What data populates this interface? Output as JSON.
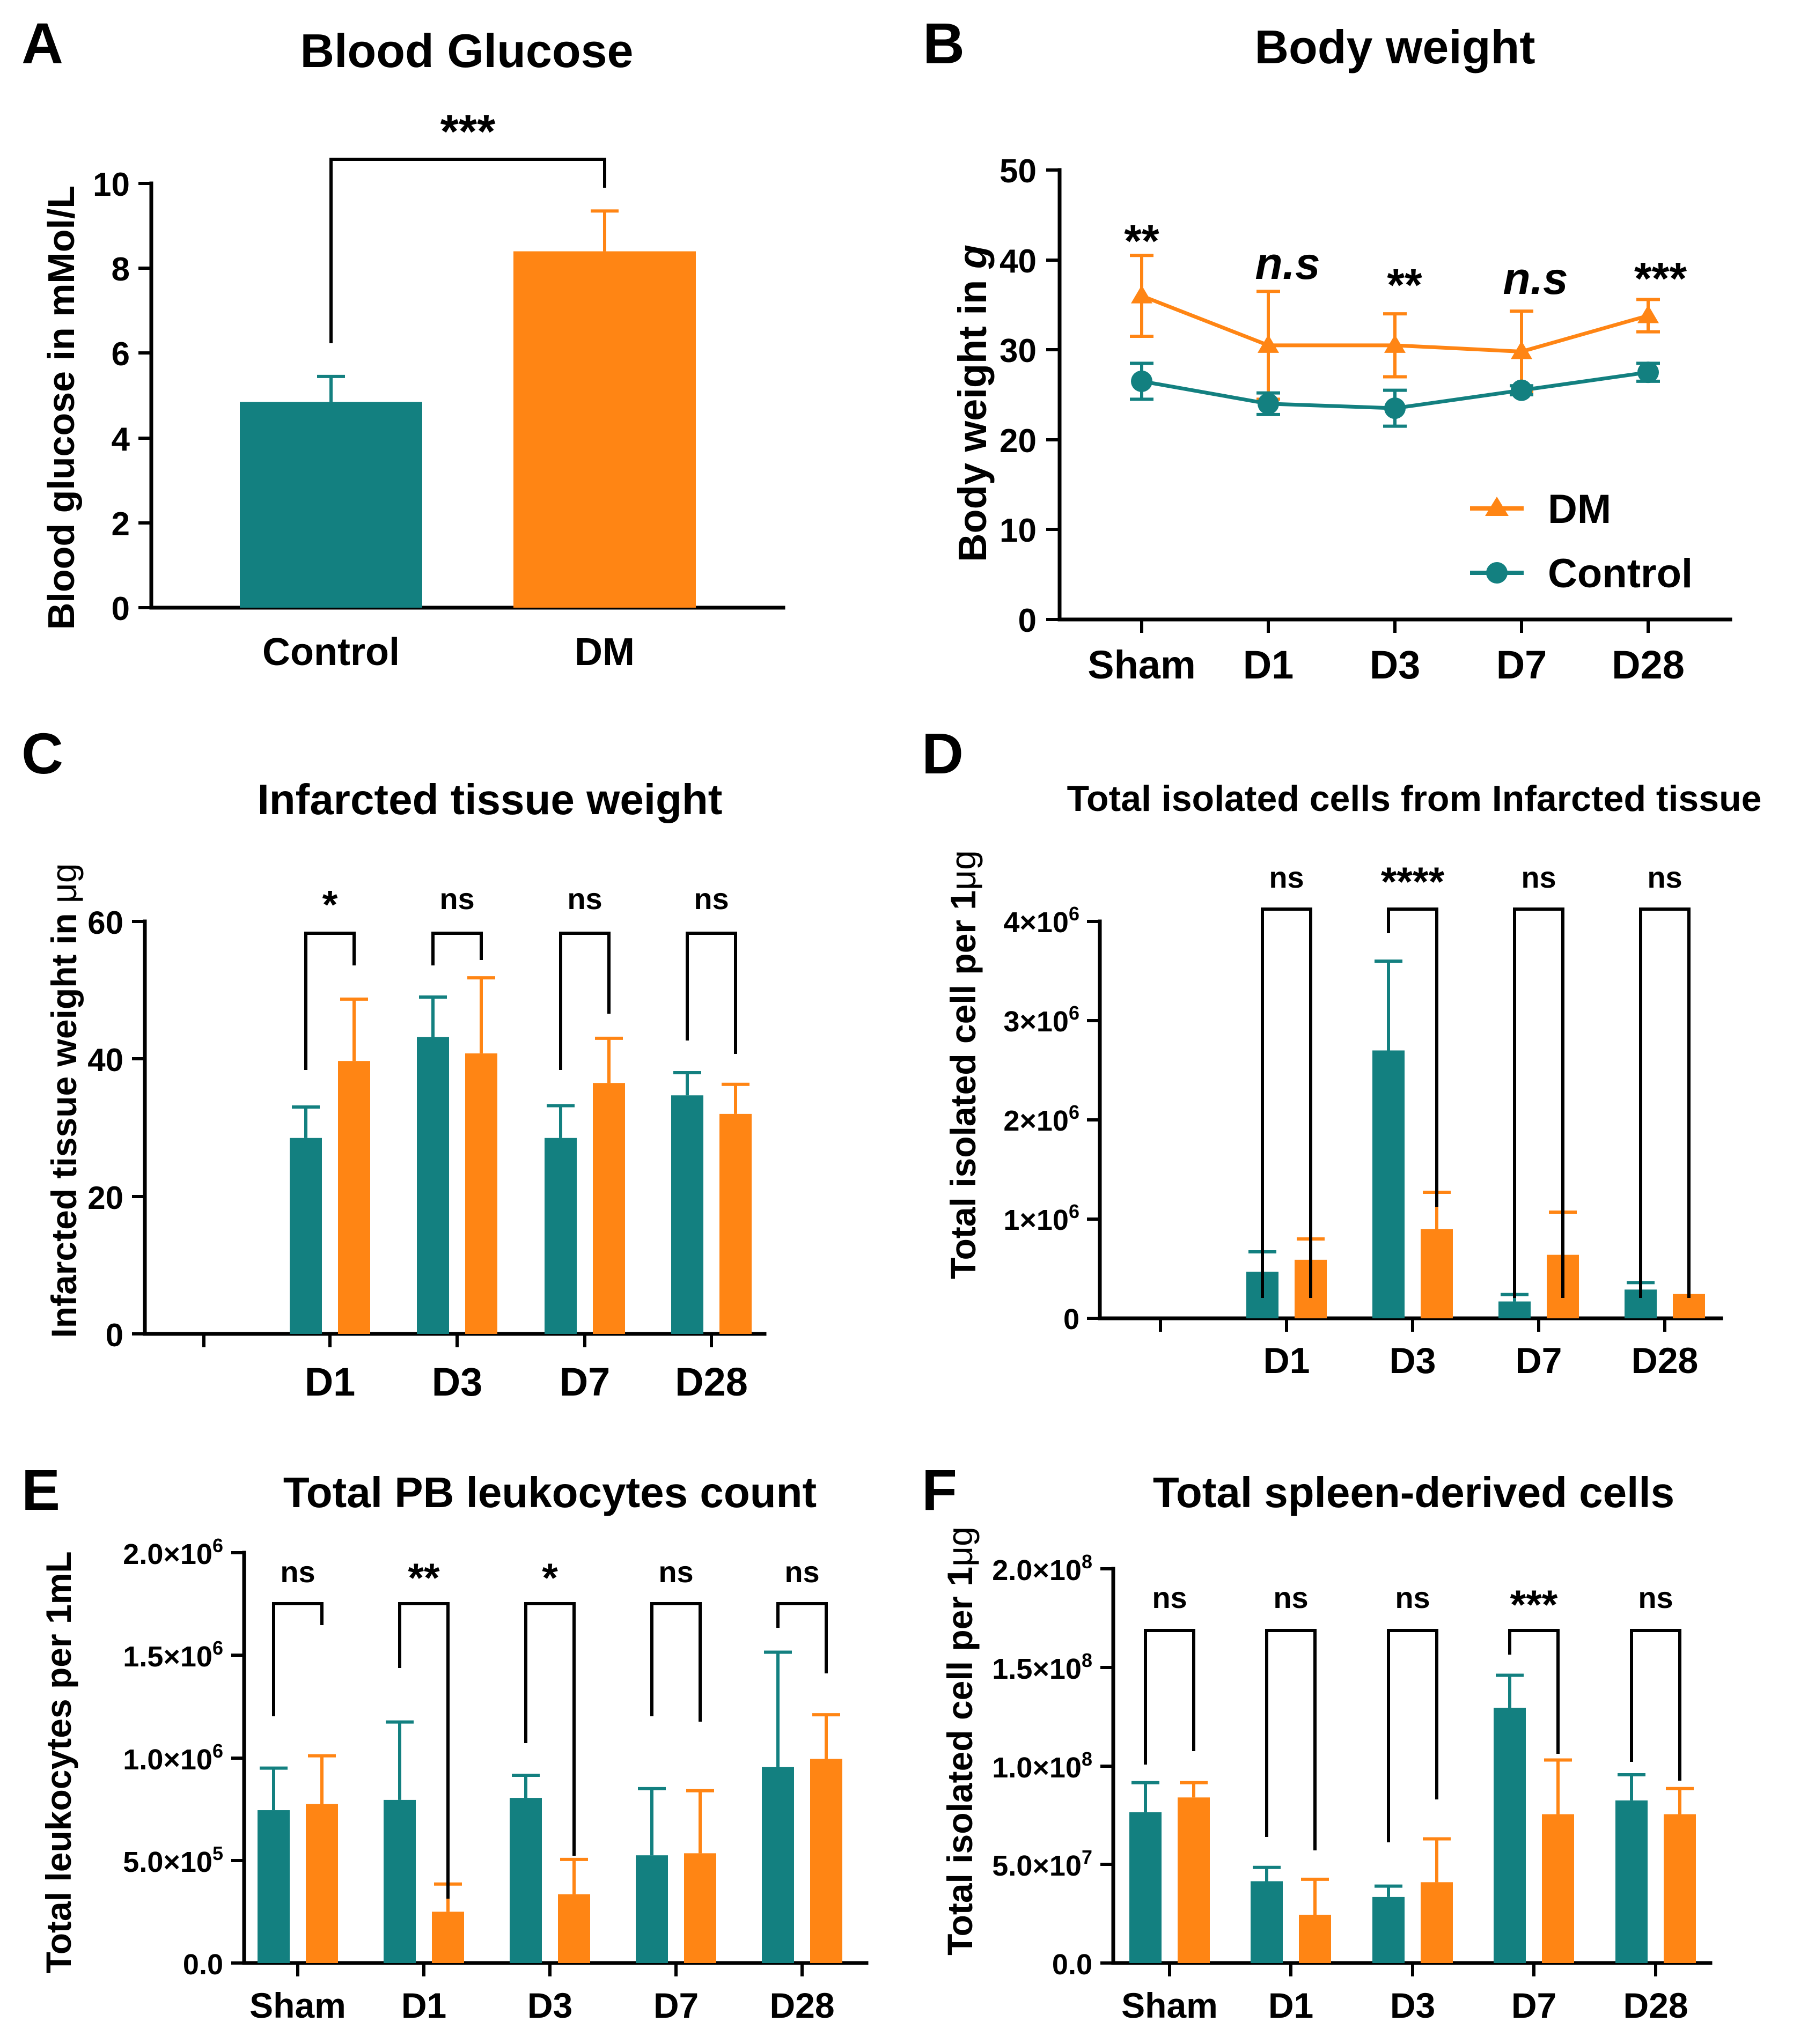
{
  "colors": {
    "control": "#138080",
    "dm": "#ff8514"
  },
  "chart_data": [
    {
      "id": "A",
      "type": "bar",
      "panel_label": "A",
      "title": "Blood Glucose",
      "ylabel": "Blood glucose in mMol/L",
      "xlabel": "",
      "ylim": [
        0,
        10
      ],
      "yticks": [
        "0",
        "2",
        "4",
        "6",
        "8",
        "10"
      ],
      "categories": [
        "Control",
        "DM"
      ],
      "values": [
        4.85,
        8.4
      ],
      "errors": [
        0.6,
        0.95
      ],
      "significance": [
        "***"
      ]
    },
    {
      "id": "B",
      "type": "line",
      "panel_label": "B",
      "title": "Body weight",
      "ylabel": "Body weight in g",
      "ylabel_prefix": "Body weight in ",
      "ylabel_unit": "g",
      "xlabel": "",
      "ylim": [
        0,
        50
      ],
      "yticks": [
        "0",
        "10",
        "20",
        "30",
        "40",
        "50"
      ],
      "categories": [
        "Sham",
        "D1",
        "D3",
        "D7",
        "D28"
      ],
      "series": [
        {
          "name": "DM",
          "marker": "triangle",
          "values": [
            36,
            30.5,
            30.5,
            29.8,
            33.8
          ],
          "errors": [
            4.5,
            6,
            3.5,
            4.5,
            1.8
          ]
        },
        {
          "name": "Control",
          "marker": "circle",
          "values": [
            26.5,
            24,
            23.5,
            25.5,
            27.5
          ],
          "errors": [
            2,
            1.2,
            2,
            0.5,
            1
          ]
        }
      ],
      "significance": [
        "**",
        "n.s",
        "**",
        "n.s",
        "***"
      ],
      "legend_position": "bottom-right"
    },
    {
      "id": "C",
      "type": "bar",
      "panel_label": "C",
      "title": "Infarcted tissue weight",
      "ylabel": "Infarcted tissue weight in μg",
      "ylabel_prefix": "Infarcted tissue weight in ",
      "ylabel_unit": "μg",
      "xlabel": "",
      "ylim": [
        0,
        60
      ],
      "yticks": [
        "0",
        "20",
        "40",
        "60"
      ],
      "categories": [
        "",
        "D1",
        "D3",
        "D7",
        "D28"
      ],
      "series": [
        {
          "name": "Control",
          "values": [
            null,
            28.5,
            43.2,
            28.5,
            34.7
          ],
          "errors": [
            null,
            4.5,
            5.8,
            4.7,
            3.3
          ]
        },
        {
          "name": "DM",
          "values": [
            null,
            39.7,
            40.8,
            36.5,
            32
          ],
          "errors": [
            null,
            9,
            11,
            6.5,
            4.3
          ]
        }
      ],
      "significance": [
        null,
        "*",
        "ns",
        "ns",
        "ns"
      ]
    },
    {
      "id": "D",
      "type": "bar",
      "panel_label": "D",
      "title": "Total isolated cells from Infarcted tissue",
      "ylabel": "Total isolated cell per 1μg",
      "ylabel_prefix": "Total isolated cell per 1",
      "ylabel_unit": "μg",
      "xlabel": "",
      "ylim": [
        0,
        4000000
      ],
      "yticks": [
        "0",
        "1×10^6",
        "2×10^6",
        "3×10^6",
        "4×10^6"
      ],
      "categories": [
        "",
        "D1",
        "D3",
        "D7",
        "D28"
      ],
      "series": [
        {
          "name": "Control",
          "values": [
            null,
            470000,
            2700000,
            170000,
            290000
          ],
          "errors": [
            null,
            200000,
            900000,
            70000,
            70000
          ]
        },
        {
          "name": "DM",
          "values": [
            null,
            590000,
            900000,
            640000,
            245000
          ],
          "errors": [
            null,
            210000,
            370000,
            430000,
            0
          ]
        }
      ],
      "significance": [
        null,
        "ns",
        "****",
        "ns",
        "ns"
      ]
    },
    {
      "id": "E",
      "type": "bar",
      "panel_label": "E",
      "title": "Total PB leukocytes count",
      "ylabel": "Total leukocytes per 1mL",
      "xlabel": "",
      "ylim": [
        0,
        2000000
      ],
      "yticks": [
        "0.0",
        "5.0×10^5",
        "1.0×10^6",
        "1.5×10^6",
        "2.0×10^6"
      ],
      "categories": [
        "Sham",
        "D1",
        "D3",
        "D7",
        "D28"
      ],
      "series": [
        {
          "name": "Control",
          "values": [
            745000,
            795000,
            805000,
            525000,
            955000
          ],
          "errors": [
            205000,
            380000,
            110000,
            325000,
            560000
          ]
        },
        {
          "name": "DM",
          "values": [
            775000,
            250000,
            335000,
            535000,
            995000
          ],
          "errors": [
            235000,
            135000,
            170000,
            305000,
            215000
          ]
        }
      ],
      "significance": [
        "ns",
        "**",
        "*",
        "ns",
        "ns"
      ]
    },
    {
      "id": "F",
      "type": "bar",
      "panel_label": "F",
      "title": "Total spleen-derived cells",
      "ylabel": "Total isolated cell per 1μg",
      "ylabel_prefix": "Total isolated cell per 1",
      "ylabel_unit": "μg",
      "xlabel": "",
      "ylim": [
        0,
        200000000
      ],
      "yticks": [
        "0.0",
        "5.0×10^7",
        "1.0×10^8",
        "1.5×10^8",
        "2.0×10^8"
      ],
      "categories": [
        "Sham",
        "D1",
        "D3",
        "D7",
        "D28"
      ],
      "series": [
        {
          "name": "Control",
          "values": [
            76500000,
            41500000,
            33500000,
            129500000,
            82500000
          ],
          "errors": [
            15000000,
            7000000,
            5500000,
            16500000,
            13000000
          ]
        },
        {
          "name": "DM",
          "values": [
            84000000,
            24500000,
            41000000,
            75500000,
            75500000
          ],
          "errors": [
            7500000,
            18000000,
            22000000,
            27500000,
            13000000
          ]
        }
      ],
      "significance": [
        "ns",
        "ns",
        "ns",
        "***",
        "ns"
      ]
    }
  ]
}
